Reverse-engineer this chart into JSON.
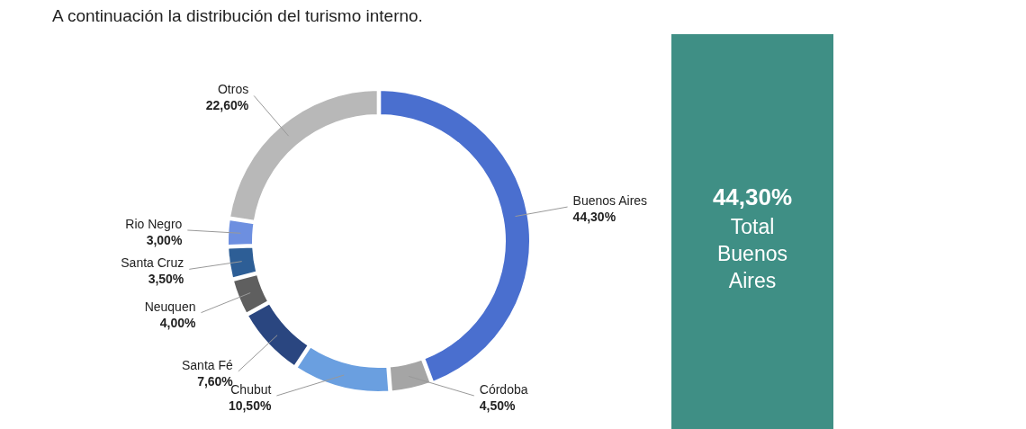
{
  "chart_data": [
    {
      "type": "donut",
      "title": "A continuación la distribución del turismo interno.",
      "categories": [
        "Buenos Aires",
        "Córdoba",
        "Chubut",
        "Santa Fé",
        "Neuquen",
        "Santa Cruz",
        "Rio Negro",
        "Otros"
      ],
      "values": [
        44.3,
        4.5,
        10.5,
        7.6,
        4.0,
        3.5,
        3.0,
        22.6
      ],
      "value_labels": [
        "44,30%",
        "4,50%",
        "10,50%",
        "7,60%",
        "4,00%",
        "3,50%",
        "3,00%",
        "22,60%"
      ],
      "colors": [
        "#4a6fcf",
        "#a5a5a5",
        "#6a9fe0",
        "#2a4680",
        "#5f5f5f",
        "#2d5e96",
        "#6d8fe0",
        "#b8b8b8"
      ]
    },
    {
      "type": "other",
      "annotations": [
        "44,30%",
        "Total Buenos Aires"
      ]
    }
  ]
}
